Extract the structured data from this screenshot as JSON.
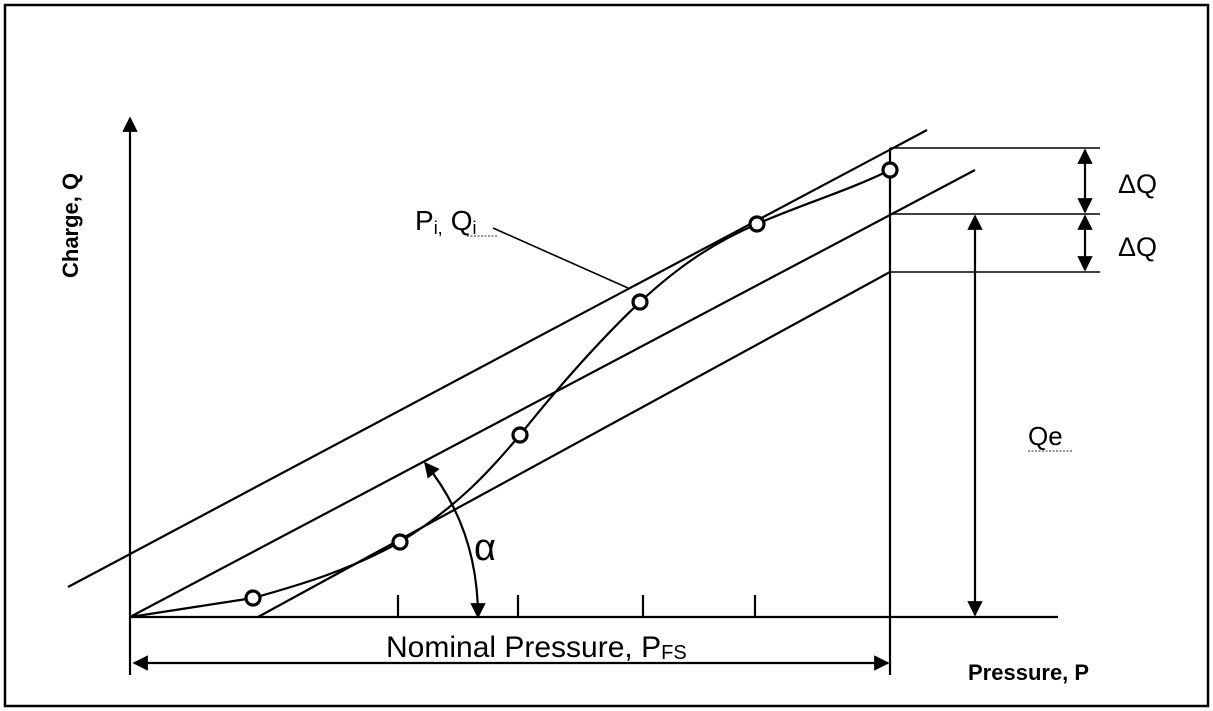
{
  "diagram": {
    "y_axis_label": "Charge, Q",
    "x_axis_label": "Pressure, P",
    "nominal_label": "Nominal Pressure, P",
    "nominal_label_sub": "FS",
    "point_label_p": "P",
    "point_label_p_sub": "i,",
    "point_label_q": "Q",
    "point_label_q_sub": "i",
    "delta_q_upper": "ΔQ",
    "delta_q_lower": "ΔQ",
    "qe_label": "Qe",
    "angle_label": "α"
  }
}
